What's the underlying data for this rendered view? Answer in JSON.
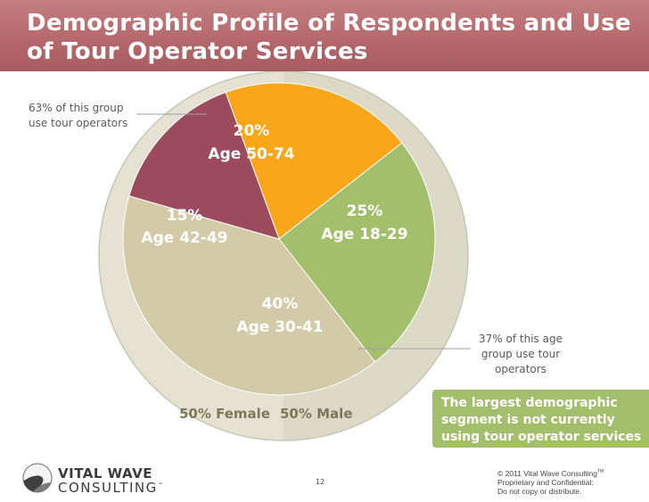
{
  "title": "Demographic Profile of Respondents and Use of Tour Operator Services",
  "chart_data": {
    "type": "pie",
    "title": "Demographic Profile of Respondents and Use of Tour Operator Services",
    "slices": [
      {
        "percent_label": "20%",
        "age_label": "Age 50-74",
        "value": 20,
        "color": "#f9a61a"
      },
      {
        "percent_label": "25%",
        "age_label": "Age 18-29",
        "value": 25,
        "color": "#a3bf6b"
      },
      {
        "percent_label": "40%",
        "age_label": "Age 30-41",
        "value": 40,
        "color": "#d3cba8"
      },
      {
        "percent_label": "15%",
        "age_label": "Age 42-49",
        "value": 15,
        "color": "#9b4b5c"
      }
    ],
    "gender_split": [
      {
        "label": "50%  Female",
        "value": 50,
        "color": "#e5e2d3"
      },
      {
        "label": "50%  Male",
        "value": 50,
        "color": "#dcd9c7"
      }
    ]
  },
  "callouts": {
    "left": "63% of this group use tour operators",
    "right": "37% of this age group use tour operators"
  },
  "highlight": "The largest demographic segment is not currently using tour operator services",
  "footer": {
    "logo_line1": "VITAL WAVE",
    "logo_line2": "CONSULTING",
    "logo_tm": "™",
    "page_number": "12",
    "copyright_line1": "© 2011 Vital Wave Consulting",
    "copyright_tm": "TM",
    "copyright_line2": "Proprietary and Confidential:",
    "copyright_line3": "Do not copy or distribute."
  },
  "colors": {
    "title_bar": "#b4676a",
    "ring_outline": "#c9c6b3",
    "callout_line": "#a0a0a0",
    "highlight_box": "#a3bf6b"
  }
}
